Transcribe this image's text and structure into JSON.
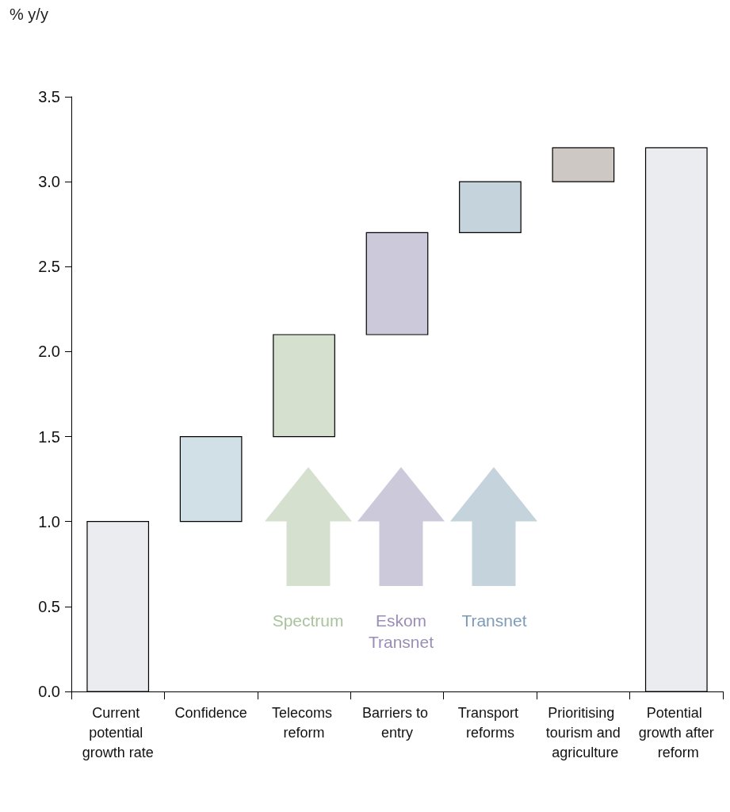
{
  "chart_data": {
    "type": "bar",
    "ylabel": "% y/y",
    "categories": [
      "Current potential growth rate",
      "Confidence",
      "Telecoms reform",
      "Barriers to entry",
      "Transport reforms",
      "Prioritising tourism and agriculture",
      "Potential growth after reform"
    ],
    "values": [
      1.0,
      0.5,
      0.6,
      0.6,
      0.3,
      0.2,
      3.2
    ],
    "base": [
      0,
      1.0,
      1.5,
      2.1,
      2.7,
      3.0,
      0
    ],
    "colors": [
      "#ebecef",
      "#d0e0e6",
      "#d5e0cf",
      "#ccc9da",
      "#c5d3dc",
      "#cdc8c4",
      "#ebecef"
    ],
    "ylim": [
      0,
      3.5
    ],
    "yticks": [
      {
        "value": 0,
        "label": "0.0"
      },
      {
        "value": 0.5,
        "label": "0.5"
      },
      {
        "value": 1,
        "label": "1.0"
      },
      {
        "value": 1.5,
        "label": "1.5"
      },
      {
        "value": 2,
        "label": "2.0"
      },
      {
        "value": 2.5,
        "label": "2.5"
      },
      {
        "value": 3,
        "label": "3.0"
      },
      {
        "value": 3.5,
        "label": "3.5"
      }
    ],
    "grid": false,
    "annotations": [
      "Spectrum",
      "Eskom Transnet",
      "Transnet"
    ]
  }
}
